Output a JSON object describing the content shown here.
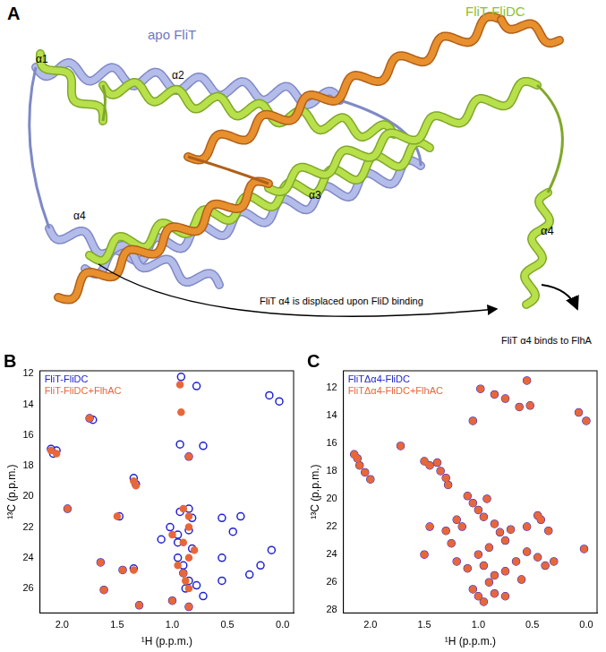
{
  "panel_a": {
    "label": "A",
    "complex_label": "FliT-FliDC",
    "apo_label": "apo FliT",
    "helix_labels": [
      "α1",
      "α2",
      "α3",
      "α4"
    ],
    "displaced_helix_label": "α4",
    "annotation_displaced": "FliT α4 is displaced upon FliD binding",
    "annotation_binds": "FliT α4 binds to FlhA"
  },
  "chart_data": [
    {
      "type": "scatter",
      "title": "B",
      "x_label": "¹H (p.p.m.)",
      "y_label": "¹³C (p.p.m.)",
      "xlim": [
        2.2,
        -0.1
      ],
      "ylim": [
        27.6,
        11.8
      ],
      "xticks": [
        {
          "value": 2,
          "label": "2.0"
        },
        {
          "value": 1.5,
          "label": "1.5"
        },
        {
          "value": 1,
          "label": "1.0"
        },
        {
          "value": 0.5,
          "label": "0.5"
        },
        {
          "value": 0,
          "label": "0.0"
        }
      ],
      "yticks": [
        12,
        14,
        16,
        18,
        20,
        22,
        24,
        26
      ],
      "grid": false,
      "legend": "upper left",
      "marker": "circle",
      "series": [
        {
          "name": "FliT-FliDC",
          "color": "#1f22d0",
          "x": [
            0.92,
            0.78,
            0.12,
            0.03,
            1.75,
            1.72,
            0.93,
            0.72,
            2.1,
            2.08,
            2.05,
            0.85,
            1.35,
            1.33,
            1.95,
            1.48,
            0.93,
            0.85,
            0.82,
            0.55,
            0.38,
            1.1,
            0.95,
            0.85,
            0.45,
            0.1,
            0.55,
            1.65,
            1.45,
            1.35,
            0.95,
            0.9,
            0.85,
            0.88,
            0.9,
            0.82,
            0.95,
            0.78,
            0.72,
            0.55,
            0.3,
            0.2,
            1.62,
            1.3,
            1.0,
            0.85,
            1.02
          ],
          "values": [
            12.2,
            12.8,
            13.4,
            13.8,
            14.9,
            15.0,
            16.6,
            16.7,
            16.9,
            17.2,
            17.0,
            17.4,
            18.8,
            19.2,
            20.8,
            21.3,
            21.0,
            20.8,
            21.4,
            21.4,
            21.3,
            22.8,
            22.5,
            22.2,
            22.3,
            23.5,
            24.0,
            24.3,
            24.8,
            24.7,
            24.0,
            25.0,
            25.5,
            26.0,
            24.5,
            23.4,
            23.0,
            25.8,
            26.5,
            25.5,
            25.1,
            24.5,
            26.1,
            27.1,
            26.8,
            27.2,
            22.0
          ]
        },
        {
          "name": "FliT-FliDC+FlhAC",
          "color": "#e8673a",
          "x": [
            0.93,
            0.92,
            1.75,
            2.1,
            2.05,
            0.85,
            1.35,
            1.33,
            1.95,
            0.9,
            0.85,
            1.0,
            0.9,
            0.85,
            0.9,
            0.88,
            0.95,
            0.8,
            0.85,
            1.45,
            1.35,
            1.65,
            1.62,
            1.3,
            1.0,
            0.85,
            0.85,
            1.5
          ],
          "values": [
            12.7,
            14.5,
            14.9,
            17.0,
            17.2,
            17.4,
            19.0,
            19.3,
            20.8,
            20.8,
            21.3,
            22.5,
            23.0,
            24.0,
            25.0,
            25.5,
            24.5,
            23.5,
            26.0,
            24.8,
            24.8,
            24.3,
            26.1,
            27.1,
            26.8,
            27.2,
            22.0,
            21.3
          ]
        }
      ]
    },
    {
      "type": "scatter",
      "title": "C",
      "x_label": "¹H (p.p.m.)",
      "y_label": "¹³C (p.p.m.)",
      "xlim": [
        2.25,
        -0.1
      ],
      "ylim": [
        28.2,
        10.8
      ],
      "xticks": [
        {
          "value": 2,
          "label": "2.0"
        },
        {
          "value": 1.5,
          "label": "1.5"
        },
        {
          "value": 1,
          "label": "1.0"
        },
        {
          "value": 0.5,
          "label": "0.5"
        },
        {
          "value": 0,
          "label": "0.0"
        }
      ],
      "yticks": [
        12,
        14,
        16,
        18,
        20,
        22,
        24,
        26,
        28
      ],
      "grid": false,
      "legend": "upper left",
      "marker": "circle",
      "series": [
        {
          "name": "FliTΔα4-FliDC",
          "color": "#1f22d0",
          "x": [
            0.98,
            0.85,
            0.75,
            0.62,
            0.52,
            1.05,
            0.55,
            0.07,
            0.0,
            2.15,
            2.12,
            2.1,
            2.05,
            2.0,
            1.72,
            1.5,
            1.45,
            1.38,
            1.35,
            1.3,
            1.28,
            1.1,
            1.05,
            1.0,
            0.95,
            0.92,
            1.2,
            1.15,
            1.3,
            1.45,
            1.5,
            0.85,
            0.8,
            0.75,
            0.7,
            0.55,
            0.45,
            0.42,
            0.35,
            0.9,
            1.0,
            0.95,
            0.85,
            0.9,
            0.75,
            0.65,
            0.55,
            0.45,
            0.38,
            0.3,
            0.02,
            1.05,
            1.0,
            0.95,
            0.85,
            0.75,
            0.6,
            1.1,
            1.25,
            1.2
          ],
          "values": [
            12.1,
            12.5,
            12.8,
            13.4,
            13.3,
            14.4,
            11.5,
            13.8,
            14.4,
            16.8,
            17.1,
            17.6,
            18.1,
            18.6,
            16.2,
            17.3,
            17.6,
            17.4,
            18.0,
            18.5,
            19.0,
            19.8,
            20.3,
            20.8,
            21.3,
            20.0,
            21.5,
            22.0,
            22.3,
            22.0,
            24.0,
            21.8,
            22.4,
            23.0,
            22.2,
            22.0,
            21.2,
            21.5,
            22.3,
            23.5,
            24.0,
            24.8,
            25.5,
            26.0,
            25.2,
            24.5,
            23.8,
            24.2,
            24.8,
            24.5,
            23.6,
            26.5,
            27.0,
            27.4,
            26.8,
            27.0,
            25.8,
            25.0,
            23.2,
            24.5
          ]
        },
        {
          "name": "FliTΔα4-FliDC+FlhAC",
          "color": "#e8673a",
          "x": [
            0.98,
            0.85,
            0.75,
            0.62,
            0.52,
            1.05,
            0.55,
            0.07,
            0.0,
            2.15,
            2.12,
            2.1,
            2.05,
            2.0,
            1.72,
            1.5,
            1.45,
            1.38,
            1.35,
            1.3,
            1.28,
            1.1,
            1.05,
            1.0,
            0.95,
            0.92,
            1.2,
            1.15,
            1.3,
            1.45,
            1.5,
            0.85,
            0.8,
            0.75,
            0.7,
            0.55,
            0.45,
            0.42,
            0.35,
            0.9,
            1.0,
            0.95,
            0.85,
            0.9,
            0.75,
            0.65,
            0.55,
            0.45,
            0.38,
            0.3,
            0.02,
            1.05,
            1.0,
            0.95,
            0.85,
            0.75,
            0.6,
            1.1,
            1.25,
            1.2
          ],
          "values": [
            12.1,
            12.5,
            12.8,
            13.4,
            13.3,
            14.4,
            11.5,
            13.8,
            14.4,
            16.8,
            17.1,
            17.6,
            18.1,
            18.6,
            16.2,
            17.3,
            17.6,
            17.4,
            18.0,
            18.5,
            19.0,
            19.8,
            20.3,
            20.8,
            21.3,
            20.0,
            21.5,
            22.0,
            22.3,
            22.0,
            24.0,
            21.8,
            22.4,
            23.0,
            22.2,
            22.0,
            21.2,
            21.5,
            22.3,
            23.5,
            24.0,
            24.8,
            25.5,
            26.0,
            25.2,
            24.5,
            23.8,
            24.2,
            24.8,
            24.5,
            23.6,
            26.5,
            27.0,
            27.4,
            26.8,
            27.0,
            25.8,
            25.0,
            23.2,
            24.5
          ]
        }
      ]
    }
  ]
}
